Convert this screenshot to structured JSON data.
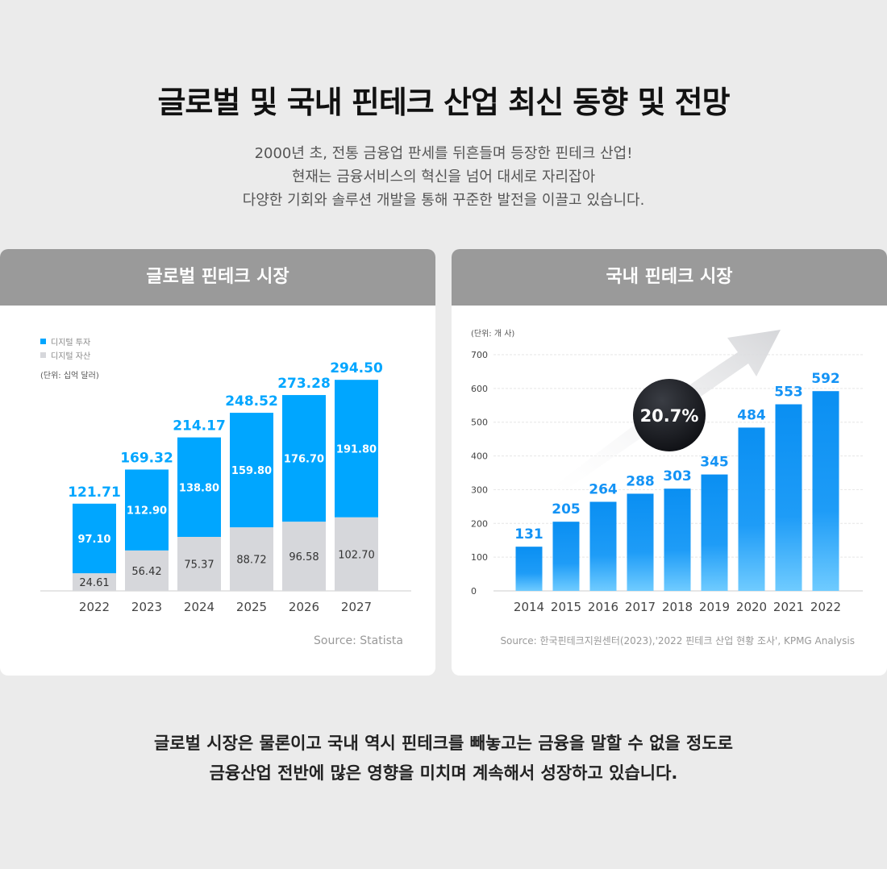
{
  "title": "글로벌 및 국내 핀테크 산업 최신 동향 및 전망",
  "intro": [
    "2000년 초, 전통 금융업 판세를 뒤흔들며 등장한 핀테크 산업!",
    "현재는 금융서비스의 혁신을 넘어 대세로 자리잡아",
    "다양한 기회와 솔루션 개발을 통해 꾸준한 발전을 이끌고 있습니다."
  ],
  "footer": [
    "글로벌 시장은 물론이고 국내 역시 핀테크를 빼놓고는 금융을 말할 수 없을 정도로",
    "금융산업 전반에 많은 영향을 미치며 계속해서 성장하고 있습니다."
  ],
  "colors": {
    "digital_investment": "#00a6ff",
    "digital_asset": "#d6d7db",
    "domestic_bar": "#1493f5",
    "header": "#9a9a9a"
  },
  "chart_data": [
    {
      "type": "bar",
      "stacked": true,
      "title": "글로벌 핀테크 시장",
      "unit_label": "(단위: 십억 달러)",
      "categories": [
        "2022",
        "2023",
        "2024",
        "2025",
        "2026",
        "2027"
      ],
      "series": [
        {
          "name": "디지털 자산",
          "values": [
            24.61,
            56.42,
            75.37,
            88.72,
            96.58,
            102.7
          ],
          "labels": [
            "24.61",
            "56.42",
            "75.37",
            "88.72",
            "96.58",
            "102.70"
          ]
        },
        {
          "name": "디지털 투자",
          "values": [
            97.1,
            112.9,
            138.8,
            159.8,
            176.7,
            191.8
          ],
          "labels": [
            "97.10",
            "112.90",
            "138.80",
            "159.80",
            "176.70",
            "191.80"
          ]
        }
      ],
      "totals": [
        "121.71",
        "169.32",
        "214.17",
        "248.52",
        "273.28",
        "294.50"
      ],
      "legend": [
        "디지털 투자",
        "디지털 자산"
      ],
      "legend_position": "top-left",
      "source": "Source: Statista"
    },
    {
      "type": "bar",
      "title": "국내 핀테크 시장",
      "unit_label": "(단위: 개 사)",
      "categories": [
        "2014",
        "2015",
        "2016",
        "2017",
        "2018",
        "2019",
        "2020",
        "2021",
        "2022"
      ],
      "values": [
        131,
        205,
        264,
        288,
        303,
        345,
        484,
        553,
        592
      ],
      "yticks": [
        "0",
        "100",
        "200",
        "300",
        "400",
        "500",
        "600",
        "700"
      ],
      "ylim": [
        0,
        700
      ],
      "grid": true,
      "annotation": "20.7%",
      "source": "Source: 한국핀테크지원센터(2023),'2022 핀테크 산업 현황 조사', KPMG Analysis"
    }
  ]
}
